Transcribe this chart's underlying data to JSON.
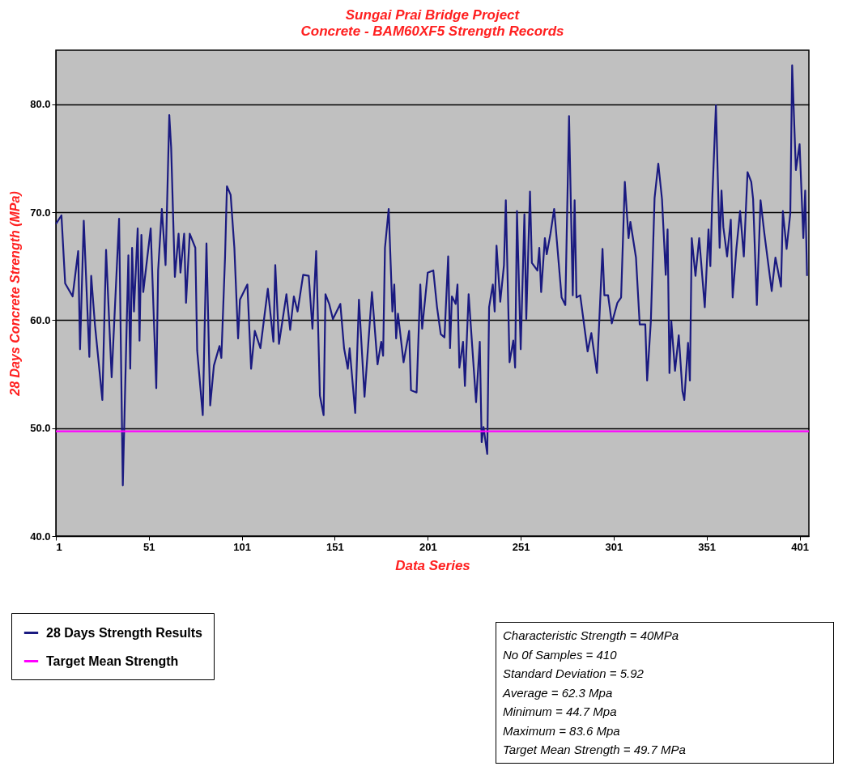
{
  "chart_data": {
    "type": "line",
    "title": "Sungai Prai Bridge Project",
    "subtitle": "Concrete - BAM60XF5 Strength Records",
    "xlabel": "Data Series",
    "ylabel": "28 Days Concrete Strength (MPa)",
    "xlim": [
      1,
      406
    ],
    "xticks": [
      1,
      51,
      101,
      151,
      201,
      251,
      301,
      351,
      401
    ],
    "ylim": [
      40,
      85
    ],
    "yticks": [
      {
        "value": 40,
        "label": "40.0"
      },
      {
        "value": 50,
        "label": "50.0"
      },
      {
        "value": 60,
        "label": "60.0"
      },
      {
        "value": 70,
        "label": "70.0"
      },
      {
        "value": 80,
        "label": "80.0"
      }
    ],
    "grid": "y",
    "legend": "bottom left",
    "marker": "none",
    "line_style": "solid",
    "series": [
      {
        "name": "28 Days Strength Results",
        "color": "#1a1a80",
        "x": [
          1,
          4,
          6,
          10,
          13,
          14,
          16,
          19,
          20,
          22,
          26,
          28,
          31,
          35,
          37,
          40,
          41,
          42,
          43,
          45,
          46,
          47,
          48,
          52,
          55,
          56,
          58,
          60,
          62,
          63,
          65,
          67,
          68,
          70,
          71,
          73,
          76,
          77,
          80,
          82,
          84,
          86,
          89,
          90,
          92,
          93,
          95,
          97,
          99,
          100,
          104,
          106,
          108,
          111,
          115,
          118,
          119,
          121,
          125,
          127,
          129,
          131,
          134,
          137,
          139,
          141,
          143,
          145,
          146,
          148,
          150,
          154,
          156,
          158,
          159,
          162,
          164,
          167,
          171,
          174,
          176,
          177,
          178,
          180,
          182,
          183,
          184,
          185,
          188,
          191,
          192,
          195,
          197,
          198,
          201,
          204,
          206,
          208,
          210,
          212,
          213,
          214,
          216,
          217,
          218,
          220,
          221,
          223,
          227,
          229,
          230,
          231,
          233,
          234,
          236,
          237,
          238,
          240,
          242,
          243,
          245,
          247,
          248,
          249,
          251,
          253,
          254,
          256,
          257,
          260,
          261,
          262,
          264,
          265,
          267,
          269,
          273,
          275,
          277,
          279,
          280,
          281,
          283,
          287,
          289,
          292,
          295,
          296,
          298,
          300,
          303,
          305,
          307,
          309,
          310,
          313,
          315,
          318,
          319,
          321,
          323,
          325,
          327,
          329,
          330,
          331,
          332,
          334,
          336,
          338,
          339,
          341,
          342,
          343,
          345,
          347,
          350,
          352,
          353,
          354,
          356,
          358,
          359,
          360,
          362,
          364,
          365,
          367,
          369,
          371,
          373,
          375,
          376,
          378,
          380,
          382,
          386,
          388,
          391,
          392,
          394,
          396,
          397,
          399,
          401,
          403,
          404,
          405
        ],
        "values": [
          68.9,
          69.7,
          63.4,
          62.2,
          66.4,
          57.3,
          69.2,
          56.6,
          64.1,
          59.6,
          52.6,
          66.5,
          54.7,
          69.4,
          44.7,
          66.0,
          55.5,
          66.7,
          60.8,
          68.5,
          58.1,
          67.9,
          62.6,
          68.5,
          53.7,
          64.6,
          70.3,
          65.1,
          79.0,
          76.0,
          64.0,
          68.0,
          64.4,
          68.0,
          61.6,
          68.0,
          66.7,
          57.2,
          51.2,
          67.1,
          52.1,
          55.8,
          57.6,
          56.5,
          65.9,
          72.4,
          71.6,
          66.7,
          58.3,
          61.9,
          63.3,
          55.5,
          59.0,
          57.4,
          62.9,
          58.0,
          65.1,
          57.8,
          62.4,
          59.1,
          62.2,
          60.8,
          64.2,
          64.1,
          59.2,
          66.4,
          53.0,
          51.2,
          62.4,
          61.5,
          60.1,
          61.5,
          57.4,
          55.5,
          57.4,
          51.4,
          61.9,
          52.9,
          62.6,
          55.9,
          58.0,
          56.7,
          66.7,
          70.3,
          60.8,
          63.3,
          58.3,
          60.6,
          56.1,
          59.0,
          53.5,
          53.3,
          63.3,
          59.2,
          64.4,
          64.6,
          61.2,
          58.7,
          58.4,
          65.9,
          57.4,
          62.2,
          61.5,
          63.3,
          55.6,
          58.0,
          53.9,
          62.4,
          52.4,
          58.0,
          48.7,
          50.1,
          47.6,
          61.2,
          63.3,
          60.8,
          66.9,
          61.7,
          65.1,
          71.1,
          56.1,
          58.1,
          55.6,
          70.1,
          57.3,
          69.8,
          60.1,
          71.9,
          65.3,
          64.6,
          66.7,
          62.6,
          67.6,
          66.1,
          68.0,
          70.3,
          62.1,
          61.4,
          78.9,
          62.3,
          71.1,
          62.1,
          62.3,
          57.1,
          58.8,
          55.1,
          66.6,
          62.3,
          62.3,
          59.7,
          61.6,
          62.1,
          72.8,
          67.6,
          69.1,
          65.8,
          59.6,
          59.6,
          54.4,
          59.9,
          71.3,
          74.5,
          71.2,
          64.2,
          68.4,
          55.1,
          59.9,
          55.3,
          58.6,
          53.4,
          52.6,
          57.9,
          54.4,
          67.6,
          64.1,
          67.6,
          61.2,
          68.4,
          65.0,
          71.1,
          79.9,
          66.7,
          72.0,
          68.6,
          65.9,
          69.3,
          62.1,
          66.6,
          70.1,
          65.9,
          73.7,
          72.8,
          71.2,
          61.4,
          71.1,
          68.1,
          62.7,
          65.8,
          63.1,
          70.1,
          66.6,
          69.9,
          83.6,
          73.9,
          76.3,
          67.6,
          72.0,
          64.1
        ]
      },
      {
        "name": "Target Mean Strength",
        "color": "#ff00ff",
        "x": [
          1,
          406
        ],
        "values": [
          49.7,
          49.7
        ]
      }
    ],
    "annotations": [
      "Characteristic Strength = 40MPa",
      "No 0f Samples = 410",
      "Standard Deviation = 5.92",
      "Average = 62.3 Mpa",
      "Minimum = 44.7 Mpa",
      "Maximum = 83.6 Mpa",
      "Target Mean Strength = 49.7 MPa"
    ]
  }
}
